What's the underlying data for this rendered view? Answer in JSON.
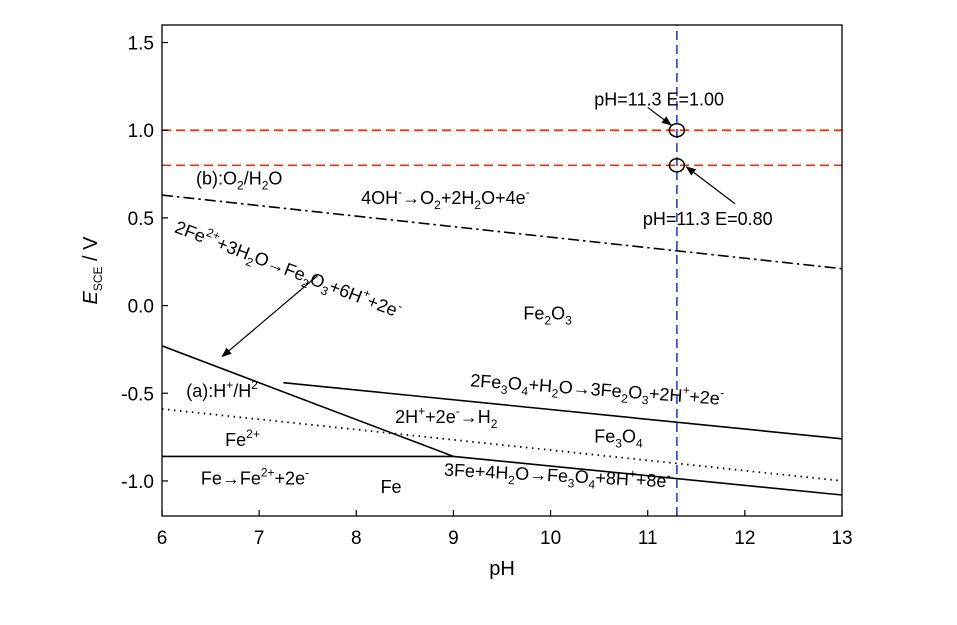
{
  "chart_data": {
    "type": "line",
    "xlabel": "pH",
    "ylabel": "E / V",
    "ylabel_main": "E",
    "ylabel_sub": "SCE",
    "ylabel_unit": " / V",
    "xlim": [
      6,
      13
    ],
    "ylim": [
      -1.2,
      1.6
    ],
    "x_ticks": [
      6,
      7,
      8,
      9,
      10,
      11,
      12,
      13
    ],
    "y_ticks": [
      -1.0,
      -0.5,
      0.0,
      0.5,
      1.0,
      1.5
    ],
    "grid": false,
    "series": [
      {
        "style": "solid",
        "color": "#000000",
        "points": [
          [
            6,
            -0.86
          ],
          [
            9,
            -0.86
          ]
        ]
      },
      {
        "style": "solid",
        "color": "#000000",
        "points": [
          [
            6,
            -0.23
          ],
          [
            9,
            -0.86
          ]
        ]
      },
      {
        "style": "solid",
        "color": "#000000",
        "points": [
          [
            9,
            -0.86
          ],
          [
            13,
            -1.08
          ]
        ]
      },
      {
        "style": "solid",
        "color": "#000000",
        "points": [
          [
            7.25,
            -0.44
          ],
          [
            13,
            -0.76
          ]
        ]
      },
      {
        "style": "dotted",
        "color": "#000000",
        "points": [
          [
            6,
            -0.59
          ],
          [
            13,
            -1.0
          ]
        ]
      },
      {
        "style": "dashdot",
        "color": "#000000",
        "points": [
          [
            6,
            0.63
          ],
          [
            13,
            0.21
          ]
        ]
      },
      {
        "style": "dashed",
        "color": "#ff2a00",
        "points": [
          [
            6,
            1.0
          ],
          [
            13,
            1.0
          ]
        ]
      },
      {
        "style": "dashed",
        "color": "#ff2a00",
        "points": [
          [
            6,
            0.8
          ],
          [
            13,
            0.8
          ]
        ]
      },
      {
        "style": "dashed",
        "color": "#2b3fb8",
        "points": [
          [
            11.3,
            -1.2
          ],
          [
            11.3,
            1.6
          ]
        ]
      }
    ],
    "markers": [
      {
        "x": 11.3,
        "y": 1.0
      },
      {
        "x": 11.3,
        "y": 0.8
      }
    ],
    "annotations": [
      {
        "id": "b-label",
        "x": 6.35,
        "y": 0.69,
        "parts": [
          [
            "(b):O",
            ""
          ],
          [
            "2",
            "sub"
          ],
          [
            "/H",
            ""
          ],
          [
            "2",
            "sub"
          ],
          [
            "O",
            ""
          ]
        ]
      },
      {
        "id": "o2-reaction",
        "x": 8.05,
        "y": 0.58,
        "parts": [
          [
            "4OH",
            ""
          ],
          [
            "-",
            "sup"
          ],
          [
            "→O",
            ""
          ],
          [
            "2",
            "sub"
          ],
          [
            "+2H",
            ""
          ],
          [
            "2",
            "sub"
          ],
          [
            "O+4e",
            ""
          ],
          [
            "-",
            "sup"
          ]
        ]
      },
      {
        "id": "fe2o3-region",
        "x": 9.72,
        "y": -0.08,
        "parts": [
          [
            "Fe",
            ""
          ],
          [
            "2",
            "sub"
          ],
          [
            "O",
            ""
          ],
          [
            "3",
            "sub"
          ]
        ]
      },
      {
        "id": "a-label",
        "x": 6.25,
        "y": -0.52,
        "parts": [
          [
            "(a):H",
            ""
          ],
          [
            "+",
            "sup"
          ],
          [
            "/H",
            ""
          ],
          [
            "2",
            "sup"
          ]
        ]
      },
      {
        "id": "fe2-region",
        "x": 6.65,
        "y": -0.8,
        "parts": [
          [
            "Fe",
            ""
          ],
          [
            "2+",
            "sup"
          ]
        ]
      },
      {
        "id": "fe-reaction",
        "x": 6.4,
        "y": -1.02,
        "parts": [
          [
            "Fe→Fe",
            ""
          ],
          [
            "2+",
            "sup"
          ],
          [
            "+2e",
            ""
          ],
          [
            "-",
            "sup"
          ]
        ]
      },
      {
        "id": "fe-region",
        "x": 8.25,
        "y": -1.07,
        "parts": [
          [
            "Fe",
            ""
          ]
        ]
      },
      {
        "id": "h2-reaction",
        "x": 8.4,
        "y": -0.67,
        "parts": [
          [
            "2H",
            ""
          ],
          [
            "+",
            "sup"
          ],
          [
            "+2e",
            ""
          ],
          [
            "-",
            "sup"
          ],
          [
            "→H",
            ""
          ],
          [
            "2",
            "sub"
          ]
        ]
      },
      {
        "id": "fe3o4-region",
        "x": 10.45,
        "y": -0.78,
        "parts": [
          [
            "Fe",
            ""
          ],
          [
            "3",
            "sub"
          ],
          [
            "O",
            ""
          ],
          [
            "4",
            "sub"
          ]
        ]
      },
      {
        "id": "fe3o4-fe2o3-reaction",
        "x": 9.17,
        "y": -0.46,
        "angle": 4.2,
        "parts": [
          [
            "2Fe",
            ""
          ],
          [
            "3",
            "sub"
          ],
          [
            "O",
            ""
          ],
          [
            "4",
            "sub"
          ],
          [
            "+H",
            ""
          ],
          [
            "2",
            "sub"
          ],
          [
            "O→3Fe",
            ""
          ],
          [
            "2",
            "sub"
          ],
          [
            "O",
            ""
          ],
          [
            "3",
            "sub"
          ],
          [
            "+2H",
            ""
          ],
          [
            "+",
            "sup"
          ],
          [
            "+2e",
            ""
          ],
          [
            "-",
            "sup"
          ]
        ]
      },
      {
        "id": "fe-fe3o4-reaction",
        "x": 8.9,
        "y": -0.97,
        "angle": 3.0,
        "parts": [
          [
            "3Fe+4H",
            ""
          ],
          [
            "2",
            "sub"
          ],
          [
            "O→Fe",
            ""
          ],
          [
            "3",
            "sub"
          ],
          [
            "O",
            ""
          ],
          [
            "4",
            "sub"
          ],
          [
            "+8H",
            ""
          ],
          [
            "+",
            "sup"
          ],
          [
            "+8e",
            ""
          ],
          [
            "-",
            "sup"
          ]
        ]
      },
      {
        "id": "fe2-fe2o3-reaction",
        "x": 6.12,
        "y": 0.42,
        "angle": 21,
        "parts": [
          [
            "2Fe",
            ""
          ],
          [
            "2+",
            "sup"
          ],
          [
            "+3H",
            ""
          ],
          [
            "2",
            "sub"
          ],
          [
            "O→Fe",
            ""
          ],
          [
            "2",
            "sub"
          ],
          [
            "O",
            ""
          ],
          [
            "3",
            "sub"
          ],
          [
            "+6H",
            ""
          ],
          [
            "+",
            "sup"
          ],
          [
            "+2e",
            ""
          ],
          [
            "-",
            "sup"
          ]
        ]
      },
      {
        "id": "point-high-label",
        "x": 10.45,
        "y": 1.14,
        "parts": [
          [
            "pH=11.3 E=1.00",
            ""
          ]
        ]
      },
      {
        "id": "point-low-label",
        "x": 10.95,
        "y": 0.46,
        "parts": [
          [
            "pH=11.3 E=0.80",
            ""
          ]
        ]
      }
    ],
    "arrows": [
      {
        "from": [
          11.0,
          1.13
        ],
        "to": [
          11.24,
          1.03
        ]
      },
      {
        "from": [
          11.9,
          0.58
        ],
        "to": [
          11.4,
          0.79
        ]
      },
      {
        "from": [
          7.6,
          0.17
        ],
        "to": [
          6.62,
          -0.29
        ]
      }
    ]
  }
}
